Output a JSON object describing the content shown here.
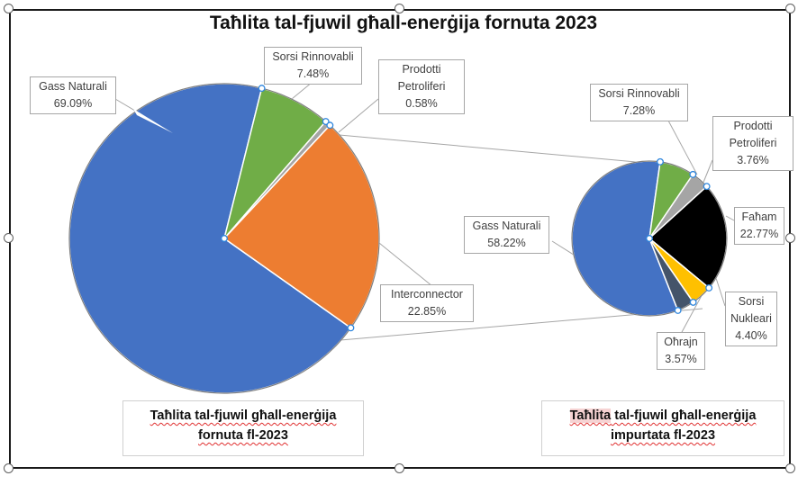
{
  "chart_data": {
    "title": "Taħlita tal-fjuwil għall-enerġija fornuta 2023",
    "type": "pie",
    "charts": [
      {
        "caption": "Taħlita tal-fjuwil għall-enerġija fornuta fl-2023",
        "slices": [
          {
            "label": "Gass Naturali",
            "value": 69.09,
            "value_text": "69.09%",
            "color": "#4472C4"
          },
          {
            "label": "Sorsi Rinnovabli",
            "value": 7.48,
            "value_text": "7.48%",
            "color": "#70AD47"
          },
          {
            "label": "Prodotti Petroliferi",
            "value": 0.58,
            "value_text": "0.58%",
            "color": "#A5A5A5"
          },
          {
            "label": "Interconnector",
            "value": 22.85,
            "value_text": "22.85%",
            "color": "#ED7D31"
          }
        ]
      },
      {
        "caption": "Taħlita tal-fjuwil għall-enerġija impurtata fl-2023",
        "slices": [
          {
            "label": "Gass Naturali",
            "value": 58.22,
            "value_text": "58.22%",
            "color": "#4472C4"
          },
          {
            "label": "Sorsi Rinnovabli",
            "value": 7.28,
            "value_text": "7.28%",
            "color": "#70AD47"
          },
          {
            "label": "Prodotti Petroliferi",
            "value": 3.76,
            "value_text": "3.76%",
            "color": "#A5A5A5"
          },
          {
            "label": "Faħam",
            "value": 22.77,
            "value_text": "22.77%",
            "color": "#000000"
          },
          {
            "label": "Sorsi Nukleari",
            "value": 4.4,
            "value_text": "4.40%",
            "color": "#FFC000"
          },
          {
            "label": "Oħrajn",
            "value": 3.57,
            "value_text": "3.57%",
            "color": "#44546A"
          }
        ]
      }
    ]
  },
  "captions": {
    "left_line1": "Taħlita tal-fjuwil għall-enerġija",
    "left_line2": "fornuta fl-2023",
    "right_word1": "Taħlita",
    "right_rest1": " tal-fjuwil għall-enerġija",
    "right_line2": "impurtata fl-2023"
  },
  "labels": {
    "l_gas": [
      "Gass Naturali",
      "69.09%"
    ],
    "l_ren": [
      "Sorsi Rinnovabli",
      "7.48%"
    ],
    "l_pet": [
      "Prodotti",
      "Petroliferi",
      "0.58%"
    ],
    "l_int": [
      "Interconnector",
      "22.85%"
    ],
    "r_ren": [
      "Sorsi Rinnovabli",
      "7.28%"
    ],
    "r_pet": [
      "Prodotti",
      "Petroliferi",
      "3.76%"
    ],
    "r_gas": [
      "Gass Naturali",
      "58.22%"
    ],
    "r_coal": [
      "Faħam",
      "22.77%"
    ],
    "r_nuc": [
      "Sorsi",
      "Nukleari",
      "4.40%"
    ],
    "r_oth": [
      "Oħrajn",
      "3.57%"
    ]
  }
}
